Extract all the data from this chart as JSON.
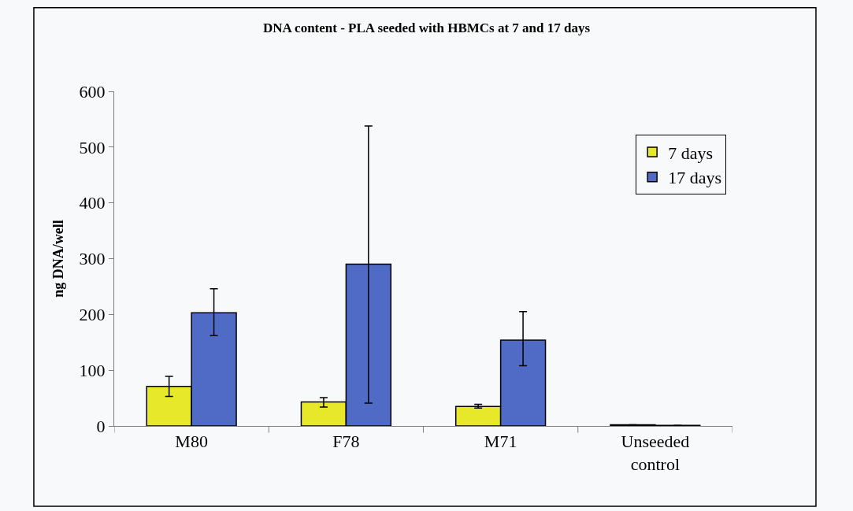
{
  "chart_data": {
    "type": "bar",
    "title": "DNA content - PLA seeded with HBMCs at 7 and 17 days",
    "ylabel": "ng DNA/well",
    "categories": [
      "M80",
      "F78",
      "M71",
      "Unseeded control"
    ],
    "series": [
      {
        "name": "7 days",
        "color": "#e8e82a",
        "values": [
          71,
          43,
          35,
          2
        ],
        "errors": [
          [
            53,
            89
          ],
          [
            34,
            51
          ],
          [
            32,
            39
          ],
          null
        ]
      },
      {
        "name": "17 days",
        "color": "#4f6bc6",
        "values": [
          203,
          290,
          154,
          1
        ],
        "errors": [
          [
            162,
            246
          ],
          [
            41,
            538
          ],
          [
            108,
            205
          ],
          null
        ]
      }
    ],
    "ylim": [
      0,
      600
    ],
    "yticks": [
      0,
      100,
      200,
      300,
      400,
      500,
      600
    ],
    "grid": false,
    "legend": "top right"
  }
}
